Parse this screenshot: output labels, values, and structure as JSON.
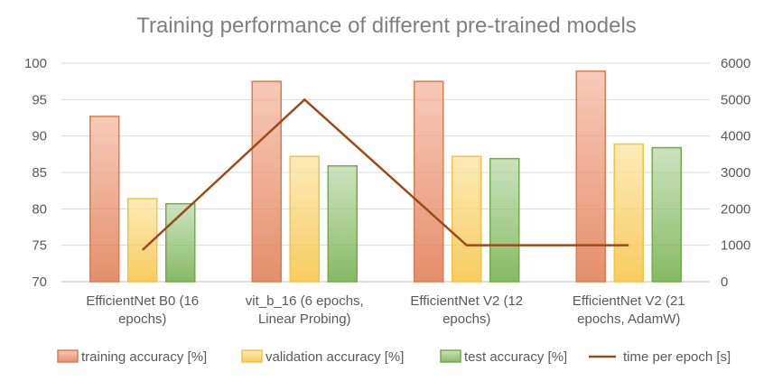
{
  "chart_data": {
    "type": "bar",
    "title": "Training performance of different pre-trained models",
    "categories": [
      [
        "EfficientNet B0 (16",
        "epochs)"
      ],
      [
        "vit_b_16 (6 epochs,",
        "Linear Probing)"
      ],
      [
        "EfficientNet V2 (12",
        "epochs)"
      ],
      [
        "EfficientNet V2 (21",
        "epochs, AdamW)"
      ]
    ],
    "series": [
      {
        "name": "training accuracy [%]",
        "type": "bar",
        "axis": "left",
        "values": [
          92.7,
          97.5,
          97.5,
          98.9
        ],
        "fill": "#f4b8a0",
        "stroke": "#e07a50"
      },
      {
        "name": "validation accuracy [%]",
        "type": "bar",
        "axis": "left",
        "values": [
          81.4,
          87.2,
          87.2,
          88.9
        ],
        "fill": "#fde3a0",
        "stroke": "#f5c242"
      },
      {
        "name": "test accuracy [%]",
        "type": "bar",
        "axis": "left",
        "values": [
          80.7,
          85.9,
          86.9,
          88.4
        ],
        "fill": "#b9d9a8",
        "stroke": "#70ad47"
      },
      {
        "name": "time per epoch [s]",
        "type": "line",
        "axis": "right",
        "values": [
          870,
          5000,
          1000,
          1000
        ],
        "color": "#9c4a1a"
      }
    ],
    "y_left": {
      "min": 70,
      "max": 100,
      "ticks": [
        70,
        75,
        80,
        85,
        90,
        95,
        100
      ]
    },
    "y_right": {
      "min": 0,
      "max": 6000,
      "ticks": [
        0,
        1000,
        2000,
        3000,
        4000,
        5000,
        6000
      ]
    },
    "grid": true,
    "legend_position": "bottom"
  }
}
